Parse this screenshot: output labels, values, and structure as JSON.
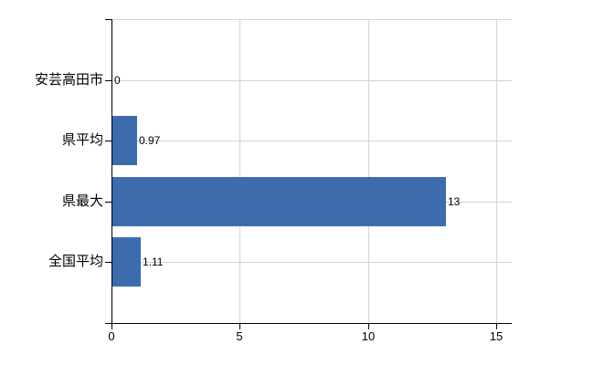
{
  "chart_data": {
    "type": "bar",
    "orientation": "horizontal",
    "title": "",
    "xlabel": "",
    "ylabel": "",
    "categories": [
      "安芸高田市",
      "県平均",
      "県最大",
      "全国平均"
    ],
    "values": [
      0,
      0.97,
      13,
      1.11
    ],
    "value_labels": [
      "0",
      "0.97",
      "13",
      "1.11"
    ],
    "xlim": [
      0,
      15.6
    ],
    "x_ticks": [
      0,
      5,
      10,
      15
    ],
    "x_tick_labels": [
      "0",
      "5",
      "10",
      "15"
    ],
    "grid": true,
    "legend": false,
    "colors": {
      "bar": "#3d6cae",
      "grid": "#d4d4d4",
      "axis": "#000000",
      "text": "#000000",
      "background": "#ffffff"
    }
  }
}
